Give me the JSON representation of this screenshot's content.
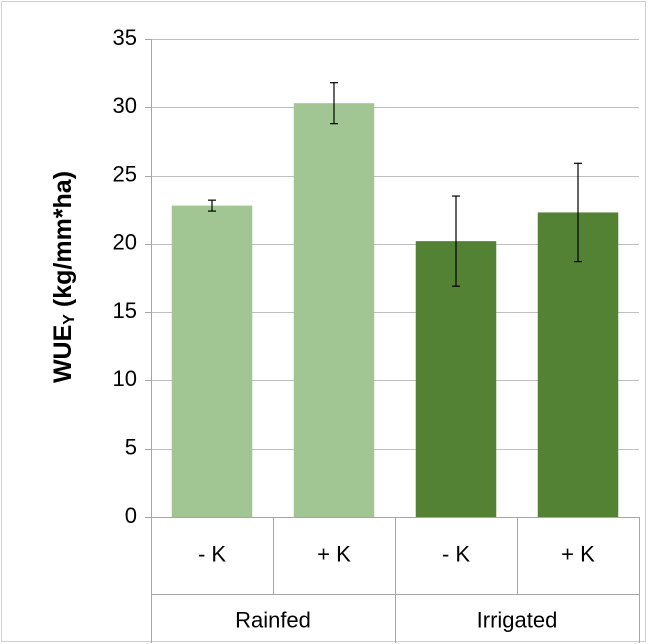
{
  "chart_data": {
    "type": "bar",
    "ylabel": "WUE",
    "ylabel_subscript": "Y",
    "ylabel_unit": " (kg/mm*ha)",
    "ylim": [
      0,
      35
    ],
    "yticks": [
      0,
      5,
      10,
      15,
      20,
      25,
      30,
      35
    ],
    "grid": true,
    "legend": "none",
    "categories": [
      "- K",
      "+ K",
      "- K",
      "+ K"
    ],
    "groups": [
      {
        "label": "Rainfed",
        "span": [
          0,
          1
        ]
      },
      {
        "label": "Irrigated",
        "span": [
          2,
          3
        ]
      }
    ],
    "values": [
      22.8,
      30.3,
      20.2,
      22.3
    ],
    "error": [
      0.4,
      1.5,
      3.3,
      3.6
    ],
    "bar_colors": [
      "#a2c594",
      "#a2c594",
      "#548235",
      "#548235"
    ],
    "colors": {
      "gridline": "#bfbfbf",
      "axis": "#a6a6a6",
      "errorbar": "#000000"
    }
  }
}
